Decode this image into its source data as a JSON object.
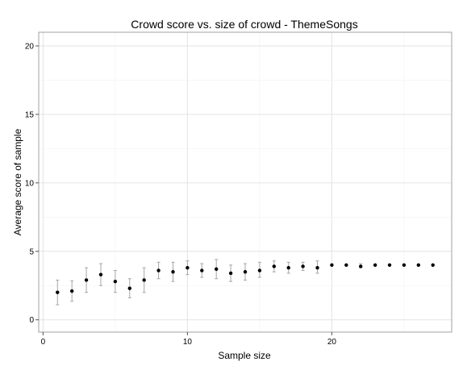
{
  "chart_data": {
    "type": "scatter",
    "title": "Crowd score vs. size of crowd -  ThemeSongs",
    "xlabel": "Sample size",
    "ylabel": "Average score of sample",
    "xlim": [
      -0.3,
      28.3
    ],
    "ylim": [
      -0.9,
      21.0
    ],
    "x_ticks": [
      0,
      10,
      20
    ],
    "y_ticks": [
      0,
      5,
      10,
      15,
      20
    ],
    "grid": true,
    "series": [
      {
        "x": [
          1,
          2,
          3,
          4,
          5,
          6,
          7,
          8,
          9,
          10,
          11,
          12,
          13,
          14,
          15,
          16,
          17,
          18,
          19,
          20,
          21,
          22,
          23,
          24,
          25,
          26,
          27
        ],
        "y": [
          2.0,
          2.1,
          2.9,
          3.3,
          2.8,
          2.3,
          2.9,
          3.6,
          3.5,
          3.8,
          3.6,
          3.7,
          3.4,
          3.5,
          3.6,
          3.9,
          3.8,
          3.9,
          3.8,
          4.0,
          4.0,
          3.9,
          4.0,
          4.0,
          4.0,
          4.0,
          4.0
        ],
        "lower": [
          1.1,
          1.35,
          2.0,
          2.5,
          2.0,
          1.6,
          2.0,
          3.0,
          2.8,
          3.3,
          3.1,
          3.0,
          2.8,
          2.9,
          3.1,
          3.5,
          3.4,
          3.6,
          3.4,
          4.0,
          4.0,
          3.8,
          4.0,
          4.0,
          4.0,
          4.0,
          4.0
        ],
        "upper": [
          2.9,
          2.85,
          3.8,
          4.1,
          3.6,
          3.0,
          3.8,
          4.2,
          4.2,
          4.3,
          4.1,
          4.4,
          4.0,
          4.1,
          4.2,
          4.3,
          4.2,
          4.2,
          4.3,
          4.0,
          4.0,
          4.1,
          4.0,
          4.0,
          4.0,
          4.0,
          4.0
        ]
      }
    ]
  }
}
